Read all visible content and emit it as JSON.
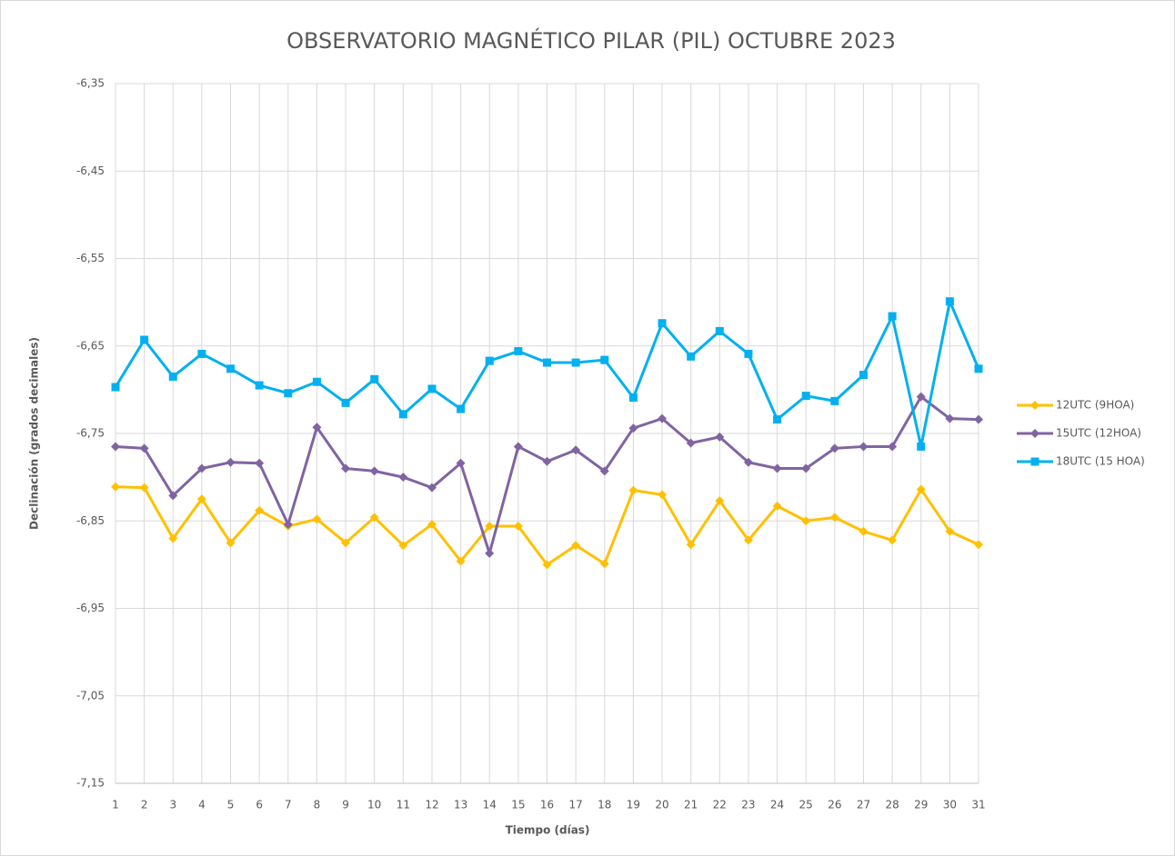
{
  "chart_data": {
    "type": "line",
    "title": "OBSERVATORIO MAGNÉTICO PILAR (PIL) OCTUBRE 2023",
    "x_label": "Tiempo (días)",
    "y_label": "Declinación (grados decimales)",
    "categories": [
      "1",
      "2",
      "3",
      "4",
      "5",
      "6",
      "7",
      "8",
      "9",
      "10",
      "11",
      "12",
      "13",
      "14",
      "15",
      "16",
      "17",
      "18",
      "19",
      "20",
      "21",
      "22",
      "23",
      "24",
      "25",
      "26",
      "27",
      "28",
      "29",
      "30",
      "31"
    ],
    "series": [
      {
        "name": "12UTC (9HOA)",
        "color": "#FFC000",
        "marker": "diamond",
        "values": [
          -6.811,
          -6.812,
          -6.87,
          -6.825,
          -6.875,
          -6.838,
          -6.856,
          -6.848,
          -6.875,
          -6.846,
          -6.878,
          -6.854,
          -6.896,
          -6.856,
          -6.856,
          -6.9,
          -6.878,
          -6.899,
          -6.815,
          -6.82,
          -6.877,
          -6.827,
          -6.872,
          -6.833,
          -6.85,
          -6.846,
          -6.862,
          -6.872,
          -6.814,
          -6.862,
          -6.877
        ]
      },
      {
        "name": "15UTC (12HOA)",
        "color": "#8064A2",
        "marker": "diamond",
        "values": [
          -6.765,
          -6.767,
          -6.821,
          -6.79,
          -6.783,
          -6.784,
          -6.854,
          -6.743,
          -6.79,
          -6.793,
          -6.8,
          -6.812,
          -6.784,
          -6.887,
          -6.765,
          -6.782,
          -6.769,
          -6.793,
          -6.744,
          -6.733,
          -6.761,
          -6.754,
          -6.783,
          -6.79,
          -6.79,
          -6.767,
          -6.765,
          -6.765,
          -6.708,
          -6.733,
          -6.734
        ]
      },
      {
        "name": "18UTC (15 HOA)",
        "color": "#00B0F0",
        "marker": "square",
        "values": [
          -6.697,
          -6.643,
          -6.685,
          -6.659,
          -6.676,
          -6.695,
          -6.704,
          -6.691,
          -6.715,
          -6.688,
          -6.728,
          -6.699,
          -6.722,
          -6.667,
          -6.656,
          -6.669,
          -6.669,
          -6.666,
          -6.709,
          -6.624,
          -6.662,
          -6.633,
          -6.659,
          -6.734,
          -6.707,
          -6.713,
          -6.683,
          -6.616,
          -6.765,
          -6.599,
          -6.676
        ]
      }
    ],
    "ylim": [
      -7.15,
      -6.35
    ],
    "yticks": [
      {
        "value": -7.15,
        "label": "-7,15"
      },
      {
        "value": -7.05,
        "label": "-7,05"
      },
      {
        "value": -6.95,
        "label": "-6,95"
      },
      {
        "value": -6.85,
        "label": "-6,85"
      },
      {
        "value": -6.75,
        "label": "-6,75"
      },
      {
        "value": -6.65,
        "label": "-6,65"
      },
      {
        "value": -6.55,
        "label": "-6,55"
      },
      {
        "value": -6.45,
        "label": "-6,45"
      },
      {
        "value": -6.35,
        "label": "-6,35"
      }
    ],
    "grid": true,
    "legend": "right"
  }
}
